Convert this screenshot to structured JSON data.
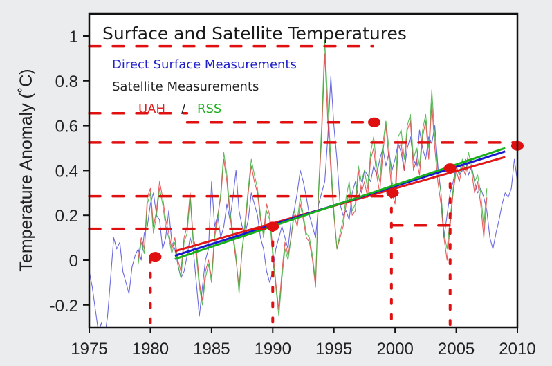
{
  "chart_data": {
    "type": "line",
    "title": "Surface and Satellite Temperatures",
    "xlabel": "",
    "ylabel": "Temperature Anomaly (˚C)",
    "xlim": [
      1975,
      2010
    ],
    "ylim": [
      -0.3,
      1.07
    ],
    "xticks": [
      1975,
      1980,
      1985,
      1990,
      1995,
      2000,
      2005,
      2010
    ],
    "yticks": [
      -0.2,
      0,
      0.2,
      0.4,
      0.6,
      0.8,
      1
    ],
    "ytick_labels": [
      "-0.2",
      "0",
      "0.2",
      "0.4",
      "0.6",
      "0.8",
      "1"
    ],
    "grid": false,
    "legend": {
      "placement": "top-left",
      "entries": [
        {
          "label": "Direct Surface Measurements",
          "color": "#2020c8"
        },
        {
          "label": "Satellite Measurements",
          "color": "#222222"
        },
        {
          "label": "UAH",
          "color": "#e02020"
        },
        {
          "label": "/",
          "color": "#222222"
        },
        {
          "label": "RSS",
          "color": "#22b022"
        }
      ]
    },
    "series": [
      {
        "name": "Direct Surface Measurements",
        "color": "#5050d8",
        "x_start": 1975.0,
        "x_step": 0.25,
        "values": [
          -0.05,
          -0.12,
          -0.22,
          -0.32,
          -0.28,
          -0.35,
          -0.25,
          -0.08,
          0.1,
          0.05,
          0.08,
          -0.05,
          -0.1,
          -0.15,
          -0.03,
          0.02,
          0.05,
          0.0,
          0.12,
          0.15,
          0.25,
          0.3,
          0.2,
          0.18,
          0.05,
          0.1,
          0.22,
          0.08,
          0.05,
          -0.02,
          -0.08,
          -0.05,
          0.02,
          0.1,
          0.05,
          -0.1,
          -0.25,
          -0.12,
          0.0,
          0.05,
          0.35,
          0.15,
          0.2,
          0.1,
          0.15,
          0.25,
          0.18,
          0.28,
          0.4,
          0.22,
          0.15,
          0.12,
          0.18,
          0.3,
          0.25,
          0.2,
          0.1,
          0.05,
          -0.05,
          -0.1,
          -0.05,
          0.05,
          0.1,
          0.15,
          0.1,
          0.05,
          0.18,
          0.22,
          0.3,
          0.4,
          0.35,
          0.28,
          0.2,
          0.15,
          0.1,
          0.25,
          0.3,
          0.35,
          0.55,
          0.82,
          0.6,
          0.45,
          0.25,
          0.2,
          0.22,
          0.18,
          0.3,
          0.35,
          0.28,
          0.32,
          0.4,
          0.38,
          0.35,
          0.42,
          0.38,
          0.45,
          0.5,
          0.42,
          0.48,
          0.4,
          0.45,
          0.52,
          0.48,
          0.4,
          0.5,
          0.55,
          0.45,
          0.42,
          0.58,
          0.5,
          0.45,
          0.55,
          0.52,
          0.6,
          0.42,
          0.3,
          0.1,
          0.2,
          0.3,
          0.35,
          0.42,
          0.38,
          0.4,
          0.45,
          0.38,
          0.42,
          0.35,
          0.3,
          0.32,
          0.28,
          0.22,
          0.1,
          0.05,
          0.12,
          0.18,
          0.25,
          0.3,
          0.28,
          0.32,
          0.45,
          0.35,
          0.25,
          0.2,
          0.18
        ]
      },
      {
        "name": "UAH",
        "color": "#e04040",
        "x_start": 1979.0,
        "x_step": 0.25,
        "values": [
          0.0,
          0.1,
          0.05,
          0.28,
          0.32,
          0.15,
          0.22,
          0.35,
          0.28,
          0.18,
          0.12,
          0.05,
          0.1,
          0.0,
          -0.05,
          0.1,
          0.15,
          0.3,
          0.1,
          0.05,
          -0.1,
          -0.18,
          -0.05,
          0.0,
          -0.08,
          0.12,
          0.2,
          0.28,
          0.45,
          0.35,
          0.2,
          0.1,
          0.0,
          -0.12,
          0.05,
          0.15,
          0.3,
          0.42,
          0.35,
          0.3,
          0.18,
          0.12,
          0.25,
          0.2,
          0.05,
          -0.1,
          -0.22,
          -0.05,
          0.08,
          0.02,
          0.1,
          0.2,
          0.15,
          0.25,
          0.18,
          0.1,
          0.08,
          0.0,
          -0.12,
          0.3,
          0.55,
          0.92,
          0.62,
          0.4,
          0.2,
          0.05,
          0.1,
          0.15,
          0.25,
          0.3,
          0.2,
          0.22,
          0.4,
          0.3,
          0.35,
          0.28,
          0.45,
          0.5,
          0.38,
          0.3,
          0.48,
          0.6,
          0.45,
          0.3,
          0.25,
          0.5,
          0.52,
          0.4,
          0.58,
          0.62,
          0.4,
          0.45,
          0.38,
          0.55,
          0.62,
          0.45,
          0.7,
          0.5,
          0.35,
          0.25,
          0.1,
          0.0,
          0.15,
          0.3,
          0.4,
          0.35,
          0.42,
          0.38,
          0.45,
          0.4,
          0.3,
          0.35,
          0.25,
          0.1,
          0.28
        ]
      },
      {
        "name": "RSS",
        "color": "#40b040",
        "x_start": 1979.0,
        "x_step": 0.25,
        "values": [
          -0.02,
          0.08,
          0.03,
          0.25,
          0.3,
          0.12,
          0.2,
          0.32,
          0.25,
          0.15,
          0.1,
          0.03,
          0.08,
          -0.02,
          -0.08,
          0.08,
          0.12,
          0.28,
          0.08,
          0.02,
          -0.12,
          -0.2,
          -0.08,
          -0.02,
          -0.1,
          0.1,
          0.18,
          0.3,
          0.48,
          0.38,
          0.22,
          0.12,
          0.02,
          -0.15,
          0.05,
          0.18,
          0.32,
          0.45,
          0.38,
          0.32,
          0.2,
          0.1,
          0.22,
          0.18,
          0.02,
          -0.12,
          -0.25,
          -0.08,
          0.05,
          0.0,
          0.1,
          0.22,
          0.18,
          0.28,
          0.2,
          0.12,
          0.1,
          0.02,
          -0.1,
          0.32,
          0.6,
          0.98,
          0.7,
          0.45,
          0.22,
          0.05,
          0.12,
          0.18,
          0.28,
          0.35,
          0.22,
          0.25,
          0.42,
          0.35,
          0.4,
          0.32,
          0.48,
          0.55,
          0.42,
          0.35,
          0.52,
          0.62,
          0.5,
          0.35,
          0.3,
          0.55,
          0.58,
          0.45,
          0.6,
          0.65,
          0.45,
          0.5,
          0.42,
          0.58,
          0.65,
          0.5,
          0.76,
          0.55,
          0.4,
          0.3,
          0.12,
          0.05,
          0.18,
          0.32,
          0.42,
          0.38,
          0.45,
          0.4,
          0.48,
          0.42,
          0.35,
          0.38,
          0.3,
          0.15,
          0.32
        ]
      }
    ],
    "trend_lines": [
      {
        "name": "UAH trend",
        "color": "#e01818",
        "x": [
          1982.0,
          2009.0
        ],
        "y": [
          0.04,
          0.46
        ]
      },
      {
        "name": "Surface trend",
        "color": "#1818d0",
        "x": [
          1982.0,
          2009.0
        ],
        "y": [
          0.02,
          0.485
        ]
      },
      {
        "name": "RSS trend",
        "color": "#18b018",
        "x": [
          1982.0,
          2009.0
        ],
        "y": [
          0.005,
          0.5
        ]
      }
    ],
    "annotations": {
      "color": "#e01010",
      "horizontal_dashed": [
        {
          "y": 0.955,
          "x_from": 1975,
          "x_to": 1998.2
        },
        {
          "y": 0.655,
          "x_from": 1975,
          "x_to": 1983
        },
        {
          "y": 0.615,
          "x_from": 1983,
          "x_to": 1998.5
        },
        {
          "y": 0.525,
          "x_from": 1975,
          "x_to": 2010
        },
        {
          "y": 0.285,
          "x_from": 1975,
          "x_to": 1999.7
        },
        {
          "y": 0.14,
          "x_from": 1975,
          "x_to": 1990
        },
        {
          "y": 0.155,
          "x_from": 1999.7,
          "x_to": 2004.5
        }
      ],
      "vertical_dotted": [
        {
          "x": 1980,
          "y_from": 0.01,
          "y_to": -0.3
        },
        {
          "x": 1990,
          "y_from": 0.15,
          "y_to": -0.3
        },
        {
          "x": 1999.7,
          "y_from": 0.3,
          "y_to": -0.3
        },
        {
          "x": 2004.5,
          "y_from": 0.41,
          "y_to": -0.3
        }
      ],
      "markers": [
        {
          "x": 1980.4,
          "y": 0.015
        },
        {
          "x": 1990.0,
          "y": 0.15
        },
        {
          "x": 1999.8,
          "y": 0.3
        },
        {
          "x": 2004.5,
          "y": 0.41
        },
        {
          "x": 2010.0,
          "y": 0.51
        },
        {
          "x": 1998.3,
          "y": 0.615
        }
      ]
    }
  }
}
